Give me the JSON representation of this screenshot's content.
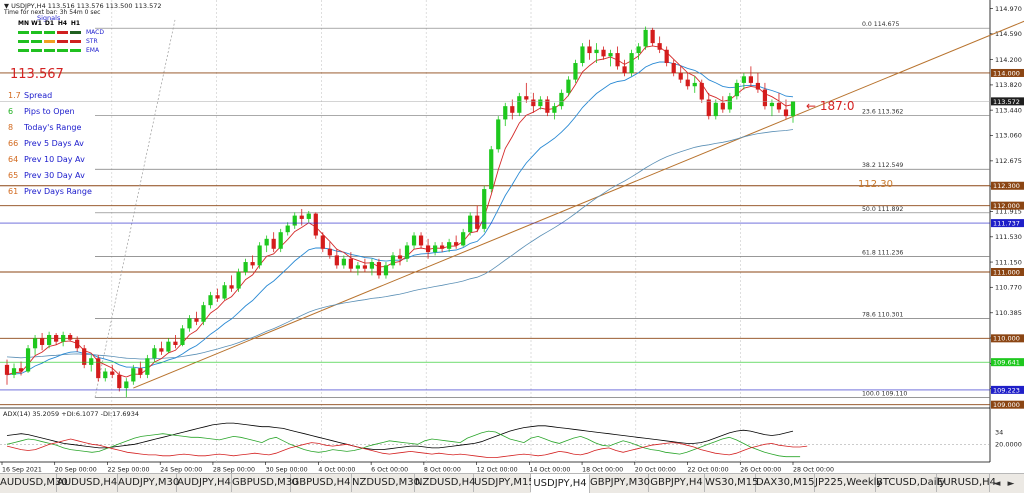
{
  "header": {
    "symbol_line": "USDJPY,H4  113.516 113.576 113.500 113.572",
    "sub_line": "Time for next bar: 3h 54m 0 sec",
    "signals_title": "Signals"
  },
  "signals": {
    "columns": [
      "MN",
      "W1",
      "D1",
      "H4",
      "H1"
    ],
    "rows": [
      {
        "name": "MACD",
        "colors": [
          "#20c020",
          "#20c020",
          "#20c020",
          "#d02020",
          "#206020"
        ]
      },
      {
        "name": "STR",
        "colors": [
          "#20c020",
          "#20c020",
          "#f0a020",
          "#d02020",
          "#d02020"
        ]
      },
      {
        "name": "EMA",
        "colors": [
          "#20c020",
          "#20c020",
          "#20c020",
          "#20c020",
          "#20c020"
        ]
      }
    ]
  },
  "price_display": "113.567",
  "stats": [
    {
      "num": "1.7",
      "label": "Spread"
    },
    {
      "num": "6",
      "label": "Pips to Open"
    },
    {
      "num": "8",
      "label": "Today's Range"
    },
    {
      "num": "66",
      "label": "Prev 5 Days Av"
    },
    {
      "num": "64",
      "label": "Prev 10 Day Av"
    },
    {
      "num": "65",
      "label": "Prev 30 Day Av"
    },
    {
      "num": "61",
      "label": "Prev Days Range"
    }
  ],
  "countdown": "187:0",
  "level_label": "112.30",
  "adx_label": "ADX(14) 35.2059 +DI:6.1077 -DI:17.6934",
  "tabs": [
    "AUDUSD,M30",
    "AUDUSD,H4",
    "AUDJPY,M30",
    "AUDJPY,H4",
    "GBPUSD,M30",
    "GBPUSD,H4",
    "NZDUSD,M30",
    "NZDUSD,H4",
    "USDJPY,M15",
    "USDJPY,H4",
    "GBPJPY,M30",
    "GBPJPY,H4",
    "WS30,M15",
    "DAX30,M15",
    "JP225,Weekly",
    "BTCUSD,Daily",
    "EURUSD,H4"
  ],
  "active_tab": "USDJPY,H4",
  "colors": {
    "bull": "#1ec81e",
    "bear": "#d41c1c",
    "ema_fast": "#d42a2a",
    "ema_mid": "#2a8ad4",
    "ema_slow": "#5a8fb5",
    "hline": "#8b4513",
    "fib": "#444444",
    "trendline": "#b8732e"
  },
  "chart_data": {
    "type": "candlestick",
    "symbol": "USDJPY",
    "timeframe": "H4",
    "ylim": [
      108.95,
      115.1
    ],
    "y_ticks": [
      114.97,
      114.59,
      114.2,
      113.82,
      113.44,
      113.06,
      112.675,
      112.295,
      111.915,
      111.53,
      111.15,
      110.77,
      110.385,
      110.005,
      109.62,
      109.24
    ],
    "x_ticks": [
      "16 Sep 2021",
      "20 Sep 00:00",
      "22 Sep 00:00",
      "24 Sep 00:00",
      "28 Sep 00:00",
      "30 Sep 00:00",
      "4 Oct 00:00",
      "6 Oct 00:00",
      "8 Oct 00:00",
      "12 Oct 00:00",
      "14 Oct 00:00",
      "18 Oct 00:00",
      "20 Oct 00:00",
      "22 Oct 00:00",
      "26 Oct 00:00",
      "28 Oct 00:00"
    ],
    "ohlc": [
      [
        109.6,
        109.68,
        109.3,
        109.45
      ],
      [
        109.45,
        109.62,
        109.4,
        109.55
      ],
      [
        109.55,
        109.65,
        109.44,
        109.5
      ],
      [
        109.5,
        109.9,
        109.48,
        109.85
      ],
      [
        109.85,
        110.05,
        109.75,
        110.0
      ],
      [
        110.0,
        110.08,
        109.82,
        109.9
      ],
      [
        109.9,
        110.1,
        109.85,
        110.05
      ],
      [
        110.05,
        110.08,
        109.9,
        109.95
      ],
      [
        109.95,
        110.1,
        109.88,
        110.05
      ],
      [
        110.05,
        110.08,
        109.95,
        109.98
      ],
      [
        109.98,
        110.03,
        109.8,
        109.85
      ],
      [
        109.85,
        109.9,
        109.55,
        109.6
      ],
      [
        109.6,
        109.75,
        109.5,
        109.7
      ],
      [
        109.7,
        109.75,
        109.35,
        109.4
      ],
      [
        109.4,
        109.55,
        109.35,
        109.5
      ],
      [
        109.5,
        109.6,
        109.4,
        109.45
      ],
      [
        109.45,
        109.5,
        109.2,
        109.25
      ],
      [
        109.25,
        109.4,
        109.11,
        109.35
      ],
      [
        109.35,
        109.6,
        109.3,
        109.55
      ],
      [
        109.55,
        109.65,
        109.4,
        109.45
      ],
      [
        109.45,
        109.75,
        109.4,
        109.7
      ],
      [
        109.7,
        109.9,
        109.65,
        109.85
      ],
      [
        109.85,
        109.95,
        109.75,
        109.8
      ],
      [
        109.8,
        110.0,
        109.78,
        109.95
      ],
      [
        109.95,
        110.05,
        109.85,
        109.9
      ],
      [
        109.9,
        110.2,
        109.88,
        110.15
      ],
      [
        110.15,
        110.35,
        110.1,
        110.3
      ],
      [
        110.3,
        110.4,
        110.2,
        110.25
      ],
      [
        110.25,
        110.55,
        110.2,
        110.5
      ],
      [
        110.5,
        110.7,
        110.45,
        110.65
      ],
      [
        110.65,
        110.75,
        110.55,
        110.6
      ],
      [
        110.6,
        110.85,
        110.58,
        110.8
      ],
      [
        110.8,
        110.95,
        110.7,
        110.75
      ],
      [
        110.75,
        111.05,
        110.7,
        111.0
      ],
      [
        111.0,
        111.2,
        110.95,
        111.15
      ],
      [
        111.15,
        111.25,
        111.05,
        111.1
      ],
      [
        111.1,
        111.45,
        111.05,
        111.4
      ],
      [
        111.4,
        111.55,
        111.3,
        111.5
      ],
      [
        111.5,
        111.6,
        111.3,
        111.35
      ],
      [
        111.35,
        111.65,
        111.3,
        111.6
      ],
      [
        111.6,
        111.75,
        111.55,
        111.7
      ],
      [
        111.7,
        111.9,
        111.65,
        111.85
      ],
      [
        111.85,
        111.95,
        111.7,
        111.8
      ],
      [
        111.8,
        111.92,
        111.75,
        111.88
      ],
      [
        111.88,
        111.9,
        111.5,
        111.55
      ],
      [
        111.55,
        111.6,
        111.3,
        111.35
      ],
      [
        111.35,
        111.45,
        111.2,
        111.25
      ],
      [
        111.25,
        111.35,
        111.05,
        111.1
      ],
      [
        111.1,
        111.25,
        111.05,
        111.2
      ],
      [
        111.2,
        111.3,
        111.0,
        111.05
      ],
      [
        111.05,
        111.15,
        110.95,
        111.1
      ],
      [
        111.1,
        111.2,
        111.0,
        111.05
      ],
      [
        111.05,
        111.2,
        110.95,
        111.15
      ],
      [
        111.15,
        111.2,
        110.9,
        110.95
      ],
      [
        110.95,
        111.15,
        110.9,
        111.1
      ],
      [
        111.1,
        111.3,
        111.05,
        111.25
      ],
      [
        111.25,
        111.35,
        111.1,
        111.2
      ],
      [
        111.2,
        111.45,
        111.15,
        111.4
      ],
      [
        111.4,
        111.6,
        111.35,
        111.55
      ],
      [
        111.55,
        111.6,
        111.35,
        111.4
      ],
      [
        111.4,
        111.5,
        111.2,
        111.3
      ],
      [
        111.3,
        111.45,
        111.25,
        111.4
      ],
      [
        111.4,
        111.45,
        111.3,
        111.35
      ],
      [
        111.35,
        111.5,
        111.3,
        111.45
      ],
      [
        111.45,
        111.55,
        111.35,
        111.4
      ],
      [
        111.4,
        111.65,
        111.38,
        111.6
      ],
      [
        111.6,
        111.9,
        111.55,
        111.85
      ],
      [
        111.85,
        112.0,
        111.6,
        111.65
      ],
      [
        111.65,
        112.3,
        111.6,
        112.25
      ],
      [
        112.25,
        112.9,
        112.2,
        112.85
      ],
      [
        112.85,
        113.35,
        112.8,
        113.3
      ],
      [
        113.3,
        113.55,
        113.2,
        113.5
      ],
      [
        113.5,
        113.6,
        113.3,
        113.4
      ],
      [
        113.4,
        113.7,
        113.35,
        113.65
      ],
      [
        113.65,
        113.85,
        113.55,
        113.6
      ],
      [
        113.6,
        113.7,
        113.4,
        113.5
      ],
      [
        113.5,
        113.65,
        113.45,
        113.6
      ],
      [
        113.6,
        113.65,
        113.35,
        113.4
      ],
      [
        113.4,
        113.55,
        113.3,
        113.5
      ],
      [
        113.5,
        113.75,
        113.45,
        113.7
      ],
      [
        113.7,
        113.95,
        113.65,
        113.9
      ],
      [
        113.9,
        114.2,
        113.85,
        114.15
      ],
      [
        114.15,
        114.45,
        114.1,
        114.4
      ],
      [
        114.4,
        114.5,
        114.2,
        114.3
      ],
      [
        114.3,
        114.45,
        114.15,
        114.35
      ],
      [
        114.35,
        114.4,
        114.2,
        114.25
      ],
      [
        114.25,
        114.35,
        114.1,
        114.3
      ],
      [
        114.3,
        114.4,
        114.05,
        114.1
      ],
      [
        114.1,
        114.2,
        113.95,
        114.0
      ],
      [
        114.0,
        114.35,
        113.95,
        114.3
      ],
      [
        114.3,
        114.45,
        114.2,
        114.4
      ],
      [
        114.4,
        114.7,
        114.35,
        114.65
      ],
      [
        114.65,
        114.68,
        114.4,
        114.45
      ],
      [
        114.45,
        114.55,
        114.3,
        114.35
      ],
      [
        114.35,
        114.4,
        114.1,
        114.15
      ],
      [
        114.15,
        114.2,
        113.95,
        114.0
      ],
      [
        114.0,
        114.1,
        113.85,
        113.9
      ],
      [
        113.9,
        114.0,
        113.75,
        113.8
      ],
      [
        113.8,
        113.95,
        113.7,
        113.85
      ],
      [
        113.85,
        113.9,
        113.55,
        113.6
      ],
      [
        113.6,
        113.7,
        113.3,
        113.35
      ],
      [
        113.35,
        113.6,
        113.3,
        113.55
      ],
      [
        113.55,
        113.65,
        113.4,
        113.45
      ],
      [
        113.45,
        113.7,
        113.4,
        113.65
      ],
      [
        113.65,
        113.9,
        113.6,
        113.85
      ],
      [
        113.85,
        114.0,
        113.75,
        113.95
      ],
      [
        113.95,
        114.1,
        113.8,
        113.85
      ],
      [
        113.85,
        114.0,
        113.7,
        113.75
      ],
      [
        113.75,
        113.85,
        113.45,
        113.5
      ],
      [
        113.5,
        113.6,
        113.35,
        113.55
      ],
      [
        113.55,
        113.7,
        113.4,
        113.45
      ],
      [
        113.45,
        113.6,
        113.3,
        113.35
      ],
      [
        113.35,
        113.55,
        113.25,
        113.572
      ]
    ],
    "ema_fast": {
      "name": "EMA fast",
      "color": "#d42a2a"
    },
    "ema_mid": {
      "name": "EMA mid",
      "color": "#2a8ad4"
    },
    "ema_slow": {
      "name": "EMA slow",
      "color": "#5a8fb5"
    },
    "horizontal_levels": [
      {
        "price": 114.0,
        "label": "114.000"
      },
      {
        "price": 112.3,
        "label": "112.300"
      },
      {
        "price": 112.0,
        "label": "112.000"
      },
      {
        "price": 111.0,
        "label": "111.000"
      },
      {
        "price": 110.0,
        "label": "110.000"
      },
      {
        "price": 109.0,
        "label": "109.000"
      }
    ],
    "price_labels": [
      {
        "price": 113.572,
        "label": "113.572",
        "bg": "#1e1e1e",
        "fg": "#ffffff"
      },
      {
        "price": 111.737,
        "label": "111.737",
        "bg": "#1f1fc8",
        "fg": "#ffffff"
      },
      {
        "price": 109.641,
        "label": "109.641",
        "bg": "#1ec81e",
        "fg": "#ffffff"
      },
      {
        "price": 109.223,
        "label": "109.223",
        "bg": "#1f1fc8",
        "fg": "#ffffff"
      }
    ],
    "fibonacci": [
      {
        "ratio": "0.0",
        "price": 114.675
      },
      {
        "ratio": "23.6",
        "price": 113.362
      },
      {
        "ratio": "38.2",
        "price": 112.549
      },
      {
        "ratio": "50.0",
        "price": 111.892
      },
      {
        "ratio": "61.8",
        "price": 111.236
      },
      {
        "ratio": "78.6",
        "price": 110.301
      },
      {
        "ratio": "100.0",
        "price": 109.11
      }
    ],
    "trendline": {
      "from": {
        "bar": 18,
        "price": 109.25
      },
      "to": {
        "bar": 150,
        "price": 115.0
      }
    },
    "adx": {
      "ylim": [
        0,
        60
      ],
      "level": 20,
      "y_ticks": [
        34,
        20
      ],
      "y_tick_labels": [
        "34",
        "20.0000"
      ],
      "adx": [
        30,
        31,
        32,
        31,
        29,
        27,
        25,
        23,
        21,
        20,
        19,
        18,
        17,
        16,
        16,
        17,
        18,
        19,
        20,
        22,
        24,
        26,
        28,
        30,
        32,
        34,
        36,
        38,
        40,
        42,
        43,
        44,
        44,
        43,
        42,
        41,
        40,
        40,
        39,
        38,
        36,
        34,
        32,
        30,
        28,
        26,
        24,
        22,
        20,
        18,
        16,
        15,
        14,
        14,
        15,
        16,
        17,
        18,
        18,
        17,
        16,
        16,
        17,
        18,
        19,
        20,
        21,
        23,
        26,
        29,
        32,
        35,
        37,
        39,
        40,
        41,
        41,
        40,
        39,
        38,
        37,
        36,
        35,
        34,
        33,
        32,
        31,
        30,
        29,
        28,
        27,
        26,
        25,
        24,
        23,
        22,
        21,
        21,
        22,
        24,
        27,
        30,
        33,
        35,
        36,
        35,
        33,
        31,
        30,
        31,
        33,
        35
      ],
      "plus_di": [
        20,
        22,
        24,
        26,
        25,
        23,
        21,
        19,
        16,
        14,
        13,
        12,
        11,
        12,
        15,
        18,
        21,
        24,
        27,
        29,
        30,
        31,
        32,
        31,
        30,
        29,
        28,
        28,
        27,
        26,
        25,
        27,
        29,
        28,
        26,
        24,
        22,
        26,
        28,
        24,
        20,
        17,
        14,
        12,
        11,
        12,
        14,
        13,
        12,
        13,
        15,
        18,
        20,
        22,
        24,
        23,
        22,
        21,
        20,
        24,
        26,
        25,
        24,
        23,
        22,
        27,
        30,
        33,
        35,
        34,
        30,
        26,
        24,
        22,
        27,
        29,
        26,
        23,
        21,
        24,
        27,
        29,
        26,
        22,
        19,
        18,
        21,
        24,
        22,
        19,
        16,
        14,
        13,
        11,
        10,
        9,
        11,
        14,
        17,
        20,
        23,
        26,
        28,
        25,
        21,
        17,
        14,
        11,
        9,
        7,
        6,
        6,
        6
      ],
      "minus_di": [
        18,
        16,
        14,
        13,
        14,
        17,
        20,
        22,
        24,
        26,
        24,
        22,
        20,
        19,
        17,
        15,
        13,
        11,
        10,
        9,
        8,
        8,
        7,
        7,
        8,
        9,
        8,
        7,
        7,
        8,
        9,
        8,
        7,
        8,
        9,
        10,
        9,
        8,
        10,
        13,
        16,
        18,
        20,
        22,
        21,
        19,
        18,
        19,
        20,
        18,
        16,
        14,
        12,
        10,
        9,
        10,
        11,
        12,
        11,
        10,
        9,
        10,
        9,
        8,
        9,
        8,
        7,
        6,
        5,
        5,
        6,
        7,
        8,
        9,
        8,
        7,
        8,
        10,
        12,
        11,
        9,
        8,
        10,
        13,
        15,
        16,
        13,
        11,
        13,
        15,
        17,
        19,
        20,
        21,
        22,
        21,
        19,
        17,
        14,
        12,
        10,
        9,
        8,
        10,
        13,
        16,
        18,
        20,
        21,
        19,
        18,
        17,
        17,
        18
      ]
    }
  }
}
